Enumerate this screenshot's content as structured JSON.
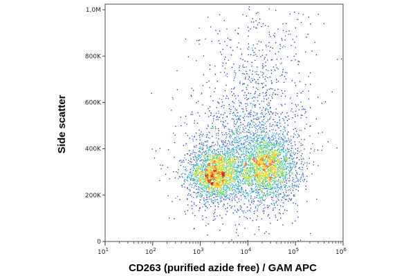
{
  "chart_data": {
    "type": "scatter",
    "title": "",
    "xlabel": "CD263 (purified azide free) / GAM APC",
    "ylabel": "Side scatter",
    "xscale": "log",
    "yscale": "linear",
    "xlim": [
      10,
      1000000
    ],
    "ylim": [
      0,
      1024000
    ],
    "grid": false,
    "legend": "none",
    "x_ticks": [
      {
        "value": 10,
        "base": "10",
        "exp": "1"
      },
      {
        "value": 100,
        "base": "10",
        "exp": "2"
      },
      {
        "value": 1000,
        "base": "10",
        "exp": "3"
      },
      {
        "value": 10000,
        "base": "10",
        "exp": "4"
      },
      {
        "value": 100000,
        "base": "10",
        "exp": "5"
      },
      {
        "value": 1000000,
        "base": "10",
        "exp": "6"
      }
    ],
    "y_ticks": [
      {
        "value": 0,
        "label": "0"
      },
      {
        "value": 200000,
        "label": "200K"
      },
      {
        "value": 400000,
        "label": "400K"
      },
      {
        "value": 600000,
        "label": "600K"
      },
      {
        "value": 800000,
        "label": "800K"
      },
      {
        "value": 1000000,
        "label": "1,0M"
      }
    ],
    "density_colors": [
      "#1a1aa8",
      "#2b6be0",
      "#33b8d8",
      "#3fd07a",
      "#a8e040",
      "#f0d020",
      "#ff7a10",
      "#e02010"
    ],
    "populations": [
      {
        "x_center": 2000,
        "y_center": 290000,
        "x_spread_decades": 0.28,
        "y_spread": 55000,
        "count": 1800
      },
      {
        "x_center": 25000,
        "y_center": 320000,
        "x_spread_decades": 0.32,
        "y_spread": 70000,
        "count": 1900
      },
      {
        "x_center": 8000,
        "y_center": 360000,
        "x_spread_decades": 0.6,
        "y_spread": 130000,
        "count": 1500
      },
      {
        "x_center": 15000,
        "y_center": 650000,
        "x_spread_decades": 0.6,
        "y_spread": 190000,
        "count": 700
      }
    ]
  }
}
